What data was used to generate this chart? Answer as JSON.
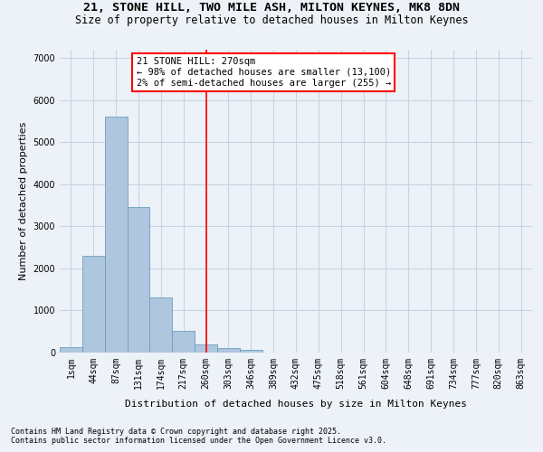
{
  "title": "21, STONE HILL, TWO MILE ASH, MILTON KEYNES, MK8 8DN",
  "subtitle": "Size of property relative to detached houses in Milton Keynes",
  "xlabel": "Distribution of detached houses by size in Milton Keynes",
  "ylabel": "Number of detached properties",
  "footnote1": "Contains HM Land Registry data © Crown copyright and database right 2025.",
  "footnote2": "Contains public sector information licensed under the Open Government Licence v3.0.",
  "bar_labels": [
    "1sqm",
    "44sqm",
    "87sqm",
    "131sqm",
    "174sqm",
    "217sqm",
    "260sqm",
    "303sqm",
    "346sqm",
    "389sqm",
    "432sqm",
    "475sqm",
    "518sqm",
    "561sqm",
    "604sqm",
    "648sqm",
    "691sqm",
    "734sqm",
    "777sqm",
    "820sqm",
    "863sqm"
  ],
  "bar_values": [
    130,
    2300,
    5600,
    3450,
    1310,
    520,
    200,
    100,
    60,
    0,
    0,
    0,
    0,
    0,
    0,
    0,
    0,
    0,
    0,
    0,
    0
  ],
  "bar_color": "#aec6de",
  "bar_edge_color": "#6a9fc0",
  "grid_color": "#c8d4e4",
  "background_color": "#edf2f8",
  "vline_x": 6,
  "vline_color": "red",
  "annotation_title": "21 STONE HILL: 270sqm",
  "annotation_line1": "← 98% of detached houses are smaller (13,100)",
  "annotation_line2": "2% of semi-detached houses are larger (255) →",
  "annotation_box_color": "white",
  "annotation_border_color": "red",
  "ylim": [
    0,
    7200
  ],
  "yticks": [
    0,
    1000,
    2000,
    3000,
    4000,
    5000,
    6000,
    7000
  ],
  "title_fontsize": 9.5,
  "subtitle_fontsize": 8.5,
  "axis_label_fontsize": 8,
  "tick_fontsize": 7,
  "annotation_fontsize": 7.5,
  "footnote_fontsize": 6
}
